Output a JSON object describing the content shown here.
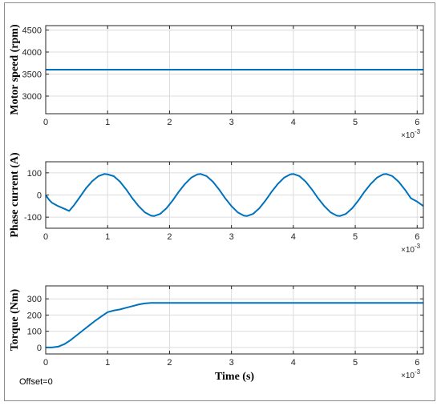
{
  "offset_label": "Offset=0",
  "chart_data": [
    {
      "type": "line",
      "title": "",
      "ylabel": "Motor speed (rpm)",
      "xlabel": "",
      "x_multiplier": "×10",
      "x_multiplier_exp": "-3",
      "xlim": [
        0,
        6.1
      ],
      "ylim": [
        2600,
        4600
      ],
      "xticks": [
        "0",
        "1",
        "2",
        "3",
        "4",
        "5",
        "6"
      ],
      "yticks": [
        "3000",
        "3500",
        "4000",
        "4500"
      ],
      "grid": true,
      "color": "#0072bd",
      "series": [
        {
          "x": [
            0,
            1,
            2,
            3,
            4,
            5,
            6,
            6.1
          ],
          "y": [
            3600,
            3600,
            3600,
            3600,
            3600,
            3600,
            3600,
            3600
          ]
        }
      ]
    },
    {
      "type": "line",
      "title": "",
      "ylabel": "Phase current (A)",
      "xlabel": "",
      "x_multiplier": "×10",
      "x_multiplier_exp": "-3",
      "xlim": [
        0,
        6.1
      ],
      "ylim": [
        -150,
        150
      ],
      "xticks": [
        "0",
        "1",
        "2",
        "3",
        "4",
        "5",
        "6"
      ],
      "yticks": [
        "-100",
        "0",
        "100"
      ],
      "grid": true,
      "color": "#0072bd",
      "series": [
        {
          "x": [
            0,
            0.05,
            0.1,
            0.2,
            0.3,
            0.38,
            0.46,
            0.55,
            0.65,
            0.75,
            0.85,
            0.95,
            1.0,
            1.1,
            1.2,
            1.3,
            1.4,
            1.5,
            1.6,
            1.7,
            1.75,
            1.85,
            1.95,
            2.05,
            2.15,
            2.25,
            2.35,
            2.45,
            2.5,
            2.6,
            2.7,
            2.8,
            2.9,
            3.0,
            3.1,
            3.2,
            3.25,
            3.35,
            3.45,
            3.55,
            3.65,
            3.75,
            3.85,
            3.95,
            4.0,
            4.1,
            4.2,
            4.3,
            4.4,
            4.5,
            4.6,
            4.7,
            4.75,
            4.85,
            4.95,
            5.05,
            5.15,
            5.25,
            5.35,
            5.45,
            5.5,
            5.6,
            5.7,
            5.8,
            5.9,
            6.0,
            6.1
          ],
          "y": [
            0,
            -20,
            -35,
            -50,
            -62,
            -72,
            -45,
            -10,
            30,
            62,
            85,
            95,
            93,
            85,
            60,
            25,
            -15,
            -50,
            -78,
            -93,
            -95,
            -85,
            -60,
            -25,
            15,
            50,
            78,
            93,
            95,
            85,
            60,
            25,
            -15,
            -50,
            -78,
            -93,
            -95,
            -85,
            -60,
            -25,
            15,
            50,
            78,
            93,
            95,
            85,
            60,
            25,
            -15,
            -50,
            -78,
            -93,
            -95,
            -85,
            -60,
            -25,
            15,
            50,
            78,
            93,
            95,
            85,
            60,
            25,
            -15,
            -30,
            -50
          ]
        }
      ]
    },
    {
      "type": "line",
      "title": "",
      "ylabel": "Torque (Nm)",
      "xlabel": "Time (s)",
      "x_multiplier": "×10",
      "x_multiplier_exp": "-3",
      "xlim": [
        0,
        6.1
      ],
      "ylim": [
        -40,
        380
      ],
      "xticks": [
        "0",
        "1",
        "2",
        "3",
        "4",
        "5",
        "6"
      ],
      "yticks": [
        "0",
        "100",
        "200",
        "300"
      ],
      "grid": true,
      "color": "#0072bd",
      "series": [
        {
          "x": [
            0,
            0.1,
            0.2,
            0.3,
            0.4,
            0.5,
            0.6,
            0.7,
            0.8,
            0.9,
            1.0,
            1.1,
            1.2,
            1.3,
            1.4,
            1.5,
            1.6,
            1.7,
            2.0,
            3.0,
            4.0,
            5.0,
            6.0,
            6.1
          ],
          "y": [
            0,
            0,
            5,
            20,
            45,
            75,
            105,
            135,
            165,
            192,
            218,
            228,
            235,
            245,
            255,
            265,
            272,
            275,
            275,
            275,
            275,
            275,
            275,
            275
          ]
        }
      ]
    }
  ]
}
